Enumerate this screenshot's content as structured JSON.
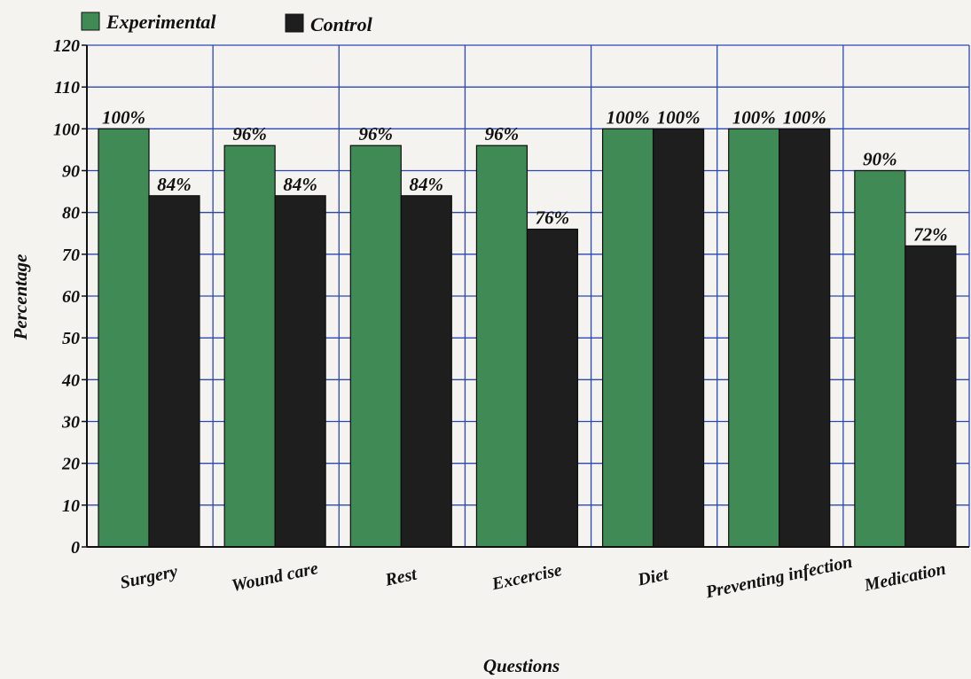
{
  "chart_data": {
    "type": "bar",
    "categories": [
      "Surgery",
      "Wound care",
      "Rest",
      "Excercise",
      "Diet",
      "Preventing infection",
      "Medication"
    ],
    "series": [
      {
        "name": "Experimental",
        "color": "#3f8a55",
        "values": [
          100,
          96,
          96,
          96,
          100,
          100,
          90
        ],
        "labels": [
          "100%",
          "96%",
          "96%",
          "96%",
          "100%",
          "100%",
          "90%"
        ]
      },
      {
        "name": "Control",
        "color": "#1e1e1e",
        "values": [
          84,
          84,
          84,
          76,
          100,
          100,
          72
        ],
        "labels": [
          "84%",
          "84%",
          "84%",
          "76%",
          "100%",
          "100%",
          "72%"
        ]
      }
    ],
    "xlabel": "Questions",
    "ylabel": "Percentage",
    "ylim": [
      0,
      120
    ],
    "yticks": [
      "0",
      "10",
      "20",
      "30",
      "40",
      "50",
      "60",
      "70",
      "80",
      "90",
      "100",
      "110",
      "120"
    ],
    "grid": true,
    "grid_color": "#2a47b8",
    "legend_position": "top-left"
  }
}
